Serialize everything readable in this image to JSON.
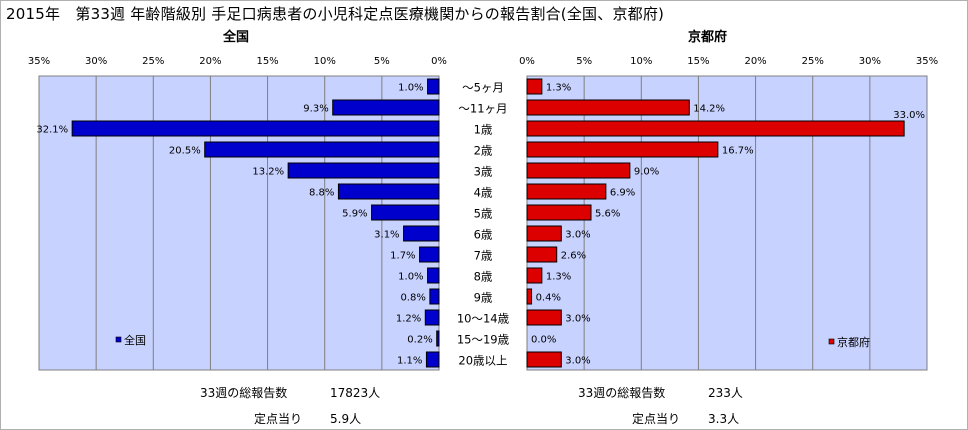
{
  "title": "2015年　第33週 年齢階級別 手足口病患者の小児科定点医療機関からの報告割合(全国、京都府)",
  "chart_data": [
    {
      "type": "bar",
      "orientation": "horizontal",
      "direction": "right-to-left",
      "title": "全国",
      "categories": [
        "〜5ヶ月",
        "〜11ヶ月",
        "1歳",
        "2歳",
        "3歳",
        "4歳",
        "5歳",
        "6歳",
        "7歳",
        "8歳",
        "9歳",
        "10〜14歳",
        "15〜19歳",
        "20歳以上"
      ],
      "series": [
        {
          "name": "全国",
          "color": "#0000cc",
          "values": [
            1.0,
            9.3,
            32.1,
            20.5,
            13.2,
            8.8,
            5.9,
            3.1,
            1.7,
            1.0,
            0.8,
            1.2,
            0.2,
            1.1
          ],
          "value_labels": [
            "1.0%",
            "9.3%",
            "32.1%",
            "20.5%",
            "13.2%",
            "8.8%",
            "5.9%",
            "3.1%",
            "1.7%",
            "1.0%",
            "0.8%",
            "1.2%",
            "0.2%",
            "1.1%"
          ]
        }
      ],
      "xlim": [
        0,
        35
      ],
      "xticks": [
        "0%",
        "5%",
        "10%",
        "15%",
        "20%",
        "25%",
        "30%",
        "35%"
      ],
      "grid": true,
      "legend": "bottom-left"
    },
    {
      "type": "bar",
      "orientation": "horizontal",
      "direction": "left-to-right",
      "title": "京都府",
      "categories": [
        "〜5ヶ月",
        "〜11ヶ月",
        "1歳",
        "2歳",
        "3歳",
        "4歳",
        "5歳",
        "6歳",
        "7歳",
        "8歳",
        "9歳",
        "10〜14歳",
        "15〜19歳",
        "20歳以上"
      ],
      "series": [
        {
          "name": "京都府",
          "color": "#dd0000",
          "values": [
            1.3,
            14.2,
            33.0,
            16.7,
            9.0,
            6.9,
            5.6,
            3.0,
            2.6,
            1.3,
            0.4,
            3.0,
            0.0,
            3.0
          ],
          "value_labels": [
            "1.3%",
            "14.2%",
            "33.0%",
            "16.7%",
            "9.0%",
            "6.9%",
            "5.6%",
            "3.0%",
            "2.6%",
            "1.3%",
            "0.4%",
            "3.0%",
            "0.0%",
            "3.0%"
          ]
        }
      ],
      "xlim": [
        0,
        35
      ],
      "xticks": [
        "0%",
        "5%",
        "10%",
        "15%",
        "20%",
        "25%",
        "30%",
        "35%"
      ],
      "grid": true,
      "legend": "bottom-right"
    }
  ],
  "summary": {
    "national": {
      "total_label": "33週の総報告数",
      "total_value": "17823人",
      "per_site_label": "定点当り",
      "per_site_value": "5.9人"
    },
    "kyoto": {
      "total_label": "33週の総報告数",
      "total_value": "233人",
      "per_site_label": "定点当り",
      "per_site_value": "3.3人"
    }
  }
}
